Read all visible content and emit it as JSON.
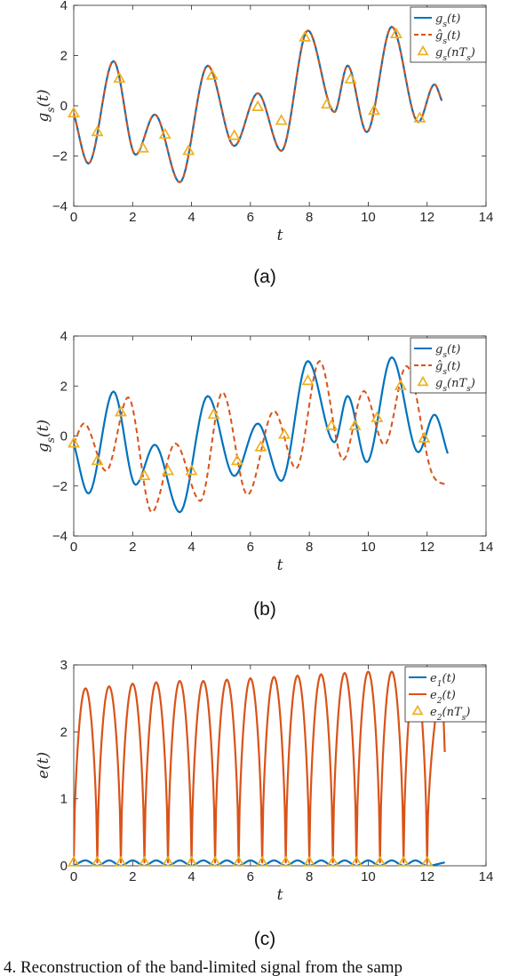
{
  "caption": "4. Reconstruction of the band-limited signal from the samp",
  "colors": {
    "blue": "#0072BD",
    "orange": "#D95319",
    "yellow": "#EDB120",
    "axis": "#262626"
  },
  "chart_data": [
    {
      "id": "a",
      "panel_label": "(a)",
      "type": "line",
      "xlabel": "t",
      "ylabel": "g_s(t)",
      "xlim": [
        0,
        14
      ],
      "ylim": [
        -4,
        4
      ],
      "xticks": [
        0,
        2,
        4,
        6,
        8,
        10,
        12,
        14
      ],
      "yticks": [
        -4,
        -2,
        0,
        2,
        4
      ],
      "grid": false,
      "legend_position": "top-right",
      "t_end": 12.5,
      "series": [
        {
          "name": "g_s(t)",
          "style": "solid",
          "color": "blue",
          "x": [
            0.0,
            0.5,
            1.35,
            2.1,
            2.75,
            3.6,
            4.55,
            5.45,
            6.25,
            7.05,
            7.95,
            8.85,
            9.3,
            9.95,
            10.8,
            11.7,
            12.25,
            12.5
          ],
          "y": [
            -0.3,
            -2.3,
            1.78,
            -1.95,
            -0.35,
            -3.05,
            1.6,
            -1.6,
            0.5,
            -1.8,
            3.0,
            -0.25,
            1.6,
            -1.05,
            3.15,
            -0.65,
            0.85,
            0.2
          ]
        },
        {
          "name": "ĝ_s(t)",
          "style": "dashed",
          "color": "orange",
          "x": [
            0.0,
            0.5,
            1.35,
            2.1,
            2.75,
            3.6,
            4.55,
            5.45,
            6.25,
            7.05,
            7.95,
            8.85,
            9.3,
            9.95,
            10.8,
            11.7,
            12.25,
            12.5
          ],
          "y": [
            -0.3,
            -2.3,
            1.78,
            -1.95,
            -0.35,
            -3.05,
            1.6,
            -1.6,
            0.5,
            -1.8,
            3.0,
            -0.25,
            1.6,
            -1.05,
            3.15,
            -0.65,
            0.85,
            0.2
          ]
        },
        {
          "name": "g_s(nT_s)",
          "style": "markers",
          "color": "yellow",
          "x": [
            0.0,
            0.8,
            1.55,
            2.35,
            3.1,
            3.9,
            4.7,
            5.45,
            6.25,
            7.05,
            7.85,
            8.6,
            9.4,
            10.2,
            10.95,
            11.75
          ],
          "y": [
            -0.3,
            -1.05,
            1.08,
            -1.7,
            -1.15,
            -1.8,
            1.2,
            -1.2,
            -0.05,
            -0.6,
            2.72,
            0.05,
            1.05,
            -0.2,
            2.85,
            -0.5
          ]
        }
      ]
    },
    {
      "id": "b",
      "panel_label": "(b)",
      "type": "line",
      "xlabel": "t",
      "ylabel": "g_s(t)",
      "xlim": [
        0,
        14
      ],
      "ylim": [
        -4,
        4
      ],
      "xticks": [
        0,
        2,
        4,
        6,
        8,
        10,
        12,
        14
      ],
      "yticks": [
        -4,
        -2,
        0,
        2,
        4
      ],
      "grid": false,
      "legend_position": "top-right",
      "t_end": 12.7,
      "series": [
        {
          "name": "g_s(t)",
          "style": "solid",
          "color": "blue",
          "x": [
            0.0,
            0.5,
            1.35,
            2.1,
            2.75,
            3.6,
            4.55,
            5.45,
            6.25,
            7.05,
            7.95,
            8.85,
            9.3,
            9.95,
            10.8,
            11.7,
            12.25,
            12.7
          ],
          "y": [
            -0.3,
            -2.3,
            1.78,
            -1.95,
            -0.35,
            -3.05,
            1.6,
            -1.6,
            0.5,
            -1.8,
            3.0,
            -0.25,
            1.6,
            -1.05,
            3.15,
            -0.65,
            0.85,
            -0.7
          ]
        },
        {
          "name": "ĝ_s(t)",
          "style": "dashed",
          "color": "orange",
          "x": [
            0.0,
            0.35,
            1.1,
            1.85,
            2.65,
            3.45,
            4.3,
            5.05,
            5.9,
            6.8,
            7.55,
            8.35,
            9.15,
            9.85,
            10.55,
            11.3,
            12.15,
            12.7
          ],
          "y": [
            -0.3,
            0.5,
            -1.4,
            1.55,
            -3.05,
            -0.3,
            -2.6,
            1.75,
            -2.35,
            1.0,
            -1.3,
            3.0,
            -0.95,
            1.8,
            -0.35,
            2.8,
            -1.45,
            -2.0
          ]
        },
        {
          "name": "g_s(nT_s)",
          "style": "markers",
          "color": "yellow",
          "x": [
            0.0,
            0.8,
            1.6,
            2.4,
            3.2,
            4.0,
            4.75,
            5.55,
            6.35,
            7.15,
            7.95,
            8.75,
            9.55,
            10.3,
            11.1,
            11.9
          ],
          "y": [
            -0.3,
            -1.0,
            0.95,
            -1.6,
            -1.4,
            -1.4,
            0.85,
            -1.0,
            -0.45,
            0.05,
            2.2,
            0.4,
            0.4,
            0.72,
            2.0,
            -0.1
          ]
        }
      ]
    },
    {
      "id": "c",
      "panel_label": "(c)",
      "type": "line",
      "xlabel": "t",
      "ylabel": "e(t)",
      "xlim": [
        0,
        14
      ],
      "ylim": [
        0,
        3
      ],
      "xticks": [
        0,
        2,
        4,
        6,
        8,
        10,
        12,
        14
      ],
      "yticks": [
        0,
        1,
        2,
        3
      ],
      "grid": false,
      "legend_position": "top-right",
      "t_end": 12.6,
      "series": [
        {
          "name": "e_1(t)",
          "style": "solid",
          "color": "blue",
          "x": [
            0.0,
            0.4,
            0.8,
            1.2,
            1.6,
            2.0,
            2.4,
            2.8,
            3.2,
            3.6,
            4.0,
            4.4,
            4.8,
            5.2,
            5.6,
            6.0,
            6.4,
            6.8,
            7.2,
            7.6,
            8.0,
            8.4,
            8.8,
            9.2,
            9.6,
            10.0,
            10.4,
            10.8,
            11.2,
            11.6,
            12.0,
            12.6
          ],
          "y": [
            0.0,
            0.08,
            0.0,
            0.08,
            0.0,
            0.08,
            0.0,
            0.08,
            0.0,
            0.08,
            0.0,
            0.08,
            0.0,
            0.08,
            0.0,
            0.08,
            0.0,
            0.08,
            0.0,
            0.08,
            0.0,
            0.08,
            0.0,
            0.08,
            0.0,
            0.08,
            0.0,
            0.08,
            0.0,
            0.08,
            0.0,
            0.05
          ]
        },
        {
          "name": "e_2(t)",
          "style": "solid",
          "color": "orange",
          "lobe_peaks": [
            2.65,
            2.68,
            2.72,
            2.74,
            2.76,
            2.76,
            2.78,
            2.8,
            2.82,
            2.84,
            2.86,
            2.88,
            2.9,
            2.9,
            2.88,
            2.92
          ],
          "x": [
            0.0,
            0.8,
            1.6,
            2.4,
            3.2,
            4.0,
            4.8,
            5.6,
            6.4,
            7.2,
            8.0,
            8.8,
            9.6,
            10.4,
            11.2,
            12.0,
            12.5,
            12.6
          ],
          "y": [
            0.05,
            0.05,
            0.05,
            0.05,
            0.05,
            0.05,
            0.05,
            0.05,
            0.05,
            0.05,
            0.05,
            0.05,
            0.05,
            0.05,
            0.05,
            0.05,
            2.92,
            1.7
          ]
        },
        {
          "name": "e_2(nT_s)",
          "style": "markers",
          "color": "yellow",
          "x": [
            0.0,
            0.8,
            1.6,
            2.4,
            3.2,
            4.0,
            4.8,
            5.6,
            6.4,
            7.2,
            8.0,
            8.8,
            9.6,
            10.4,
            11.2,
            12.0
          ],
          "y": [
            0.05,
            0.05,
            0.05,
            0.05,
            0.05,
            0.05,
            0.05,
            0.05,
            0.05,
            0.05,
            0.05,
            0.05,
            0.05,
            0.05,
            0.05,
            0.05
          ]
        }
      ]
    }
  ]
}
